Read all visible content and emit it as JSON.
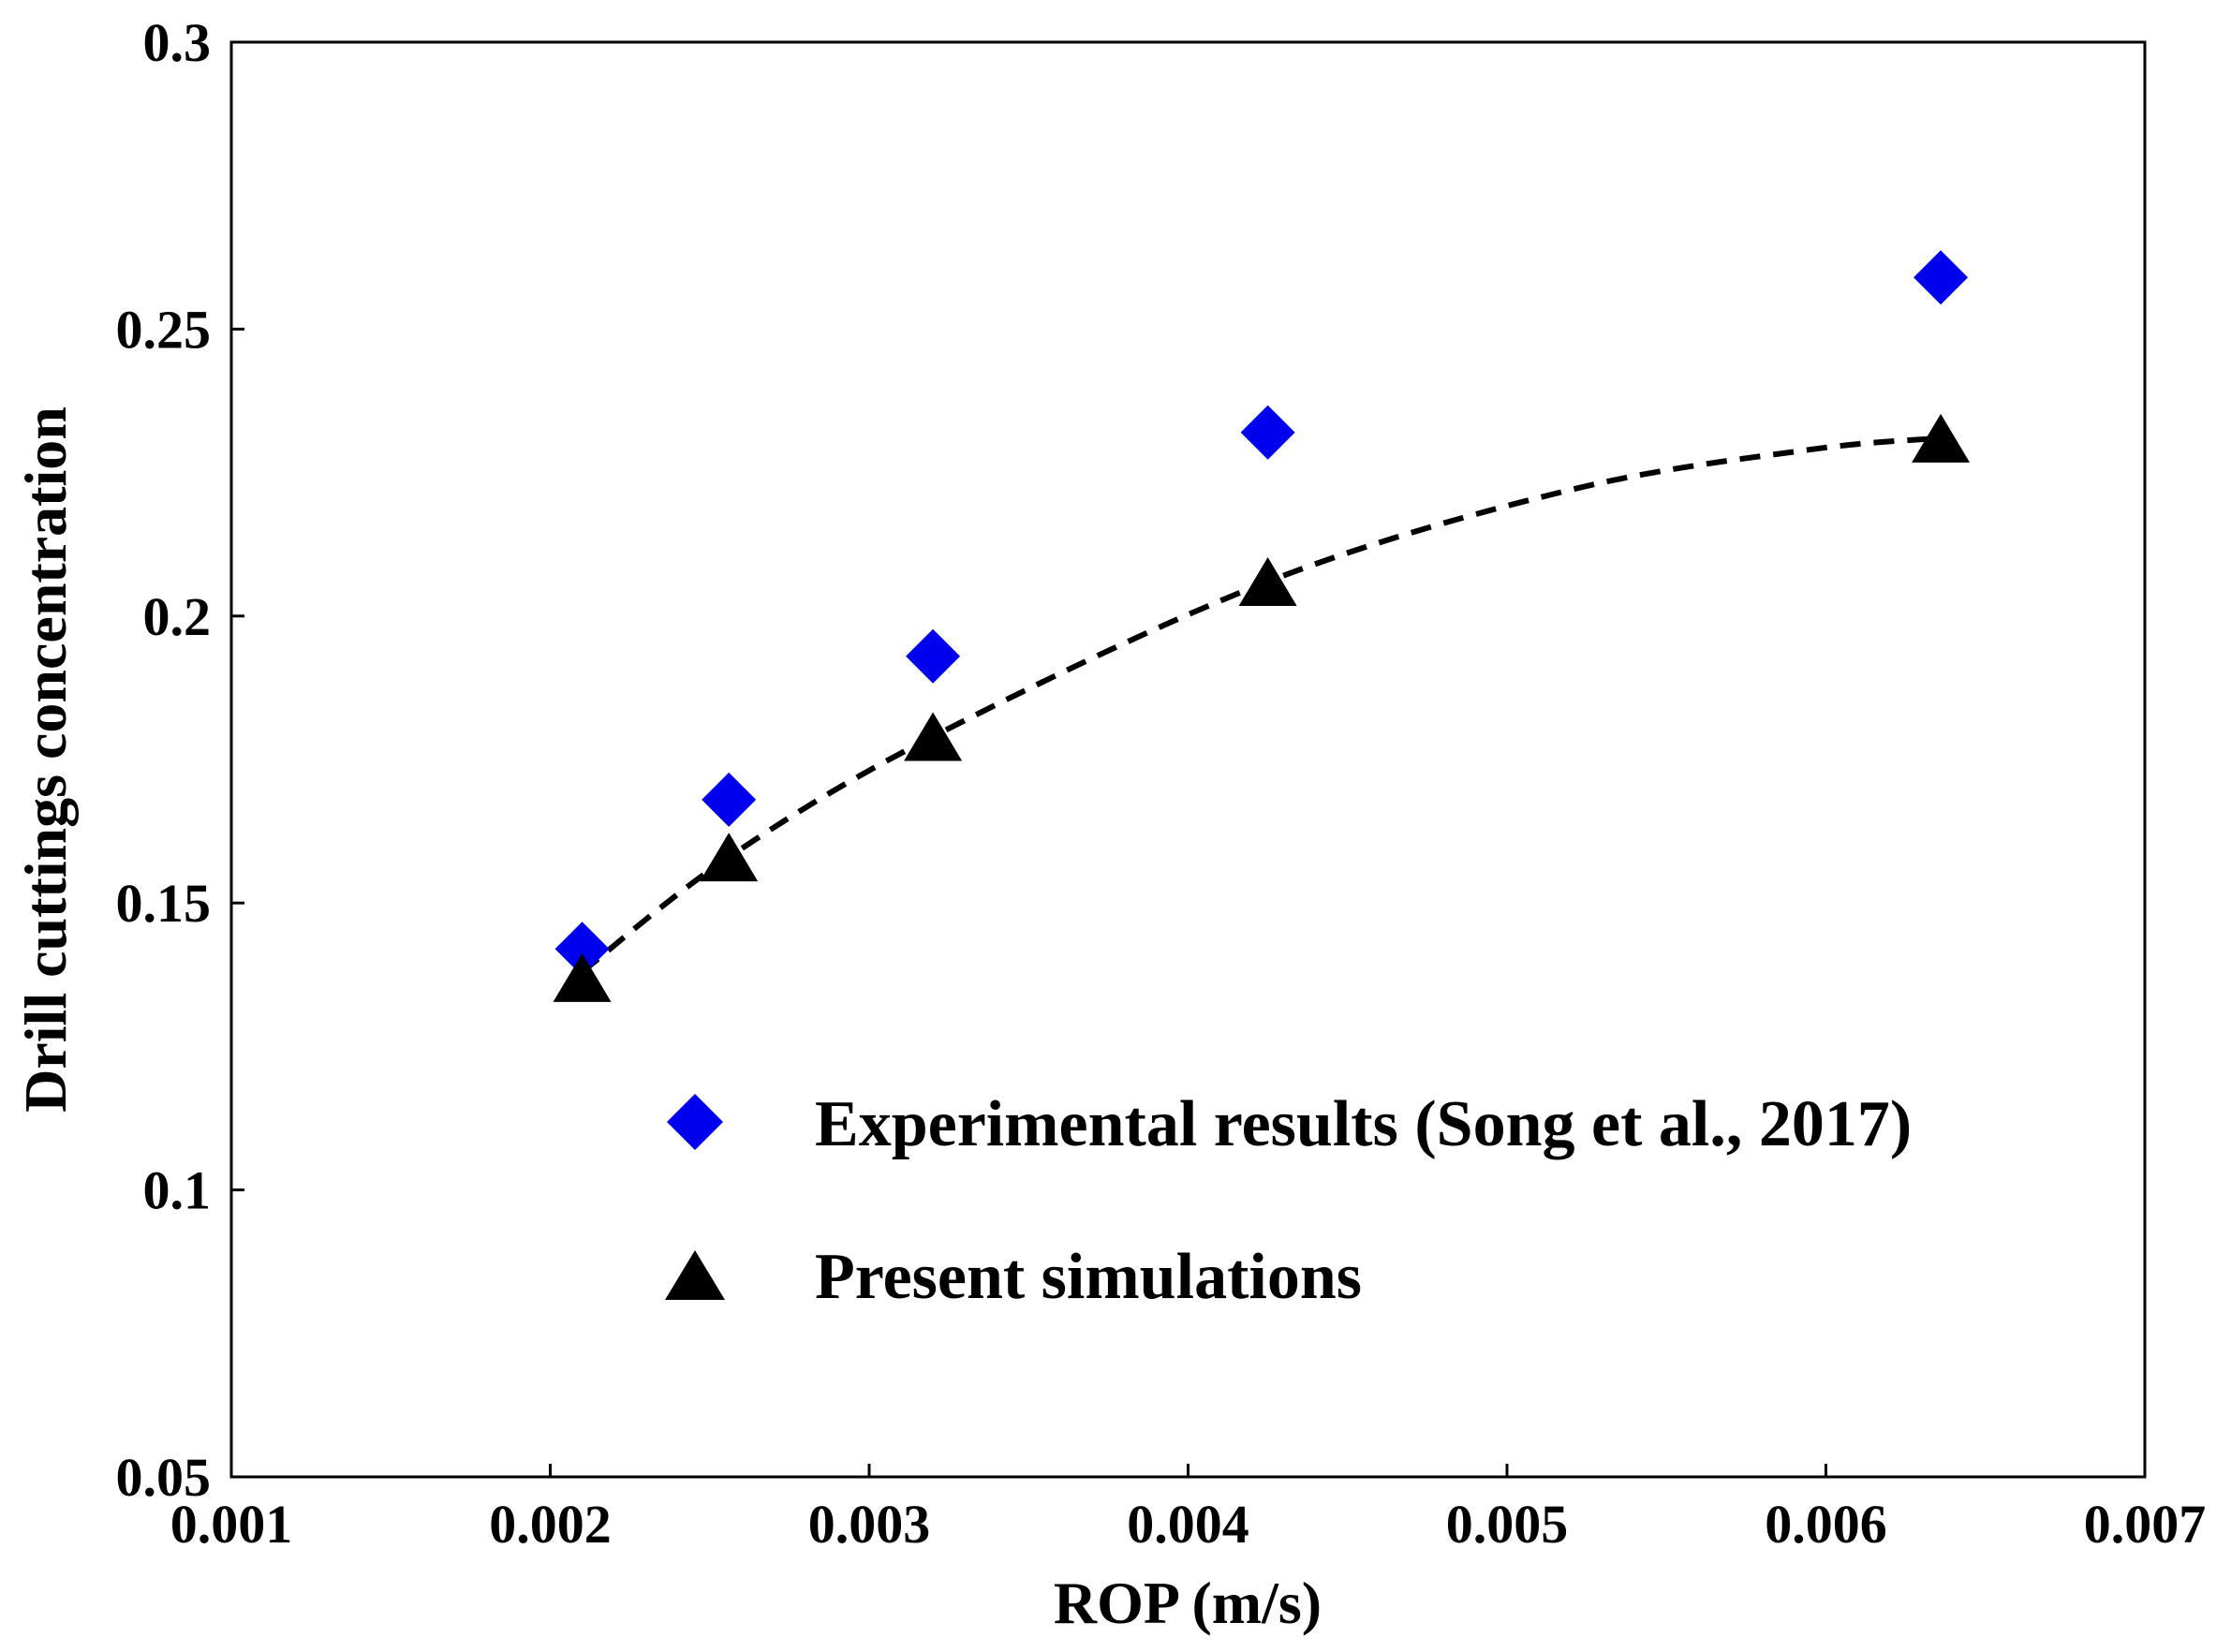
{
  "chart_data": {
    "type": "scatter",
    "xlabel": "ROP (m/s)",
    "ylabel": "Drill cuttings concentration",
    "xlim": [
      0.001,
      0.007
    ],
    "ylim": [
      0.05,
      0.3
    ],
    "xticks": [
      "0.001",
      "0.002",
      "0.003",
      "0.004",
      "0.005",
      "0.006",
      "0.007"
    ],
    "yticks": [
      "0.05",
      "0.1",
      "0.15",
      "0.2",
      "0.25",
      "0.3"
    ],
    "grid": false,
    "legend_position": "lower-center",
    "series": [
      {
        "name": "Experimental results (Song et al., 2017)",
        "marker": "diamond",
        "color": "#0000ee",
        "x": [
          0.0021,
          0.00256,
          0.0032,
          0.00425,
          0.00636
        ],
        "y": [
          0.142,
          0.168,
          0.193,
          0.232,
          0.259
        ]
      },
      {
        "name": "Present simulations",
        "marker": "triangle",
        "color": "#000000",
        "x": [
          0.0021,
          0.00256,
          0.0032,
          0.00425,
          0.00636
        ],
        "y": [
          0.137,
          0.158,
          0.179,
          0.206,
          0.231
        ]
      }
    ],
    "trend_line": {
      "style": "dashed",
      "color": "#000000",
      "x": [
        0.0021,
        0.00256,
        0.0032,
        0.00425,
        0.0052,
        0.00595,
        0.00636
      ],
      "y": [
        0.138,
        0.158,
        0.179,
        0.206,
        0.222,
        0.229,
        0.231
      ]
    }
  }
}
